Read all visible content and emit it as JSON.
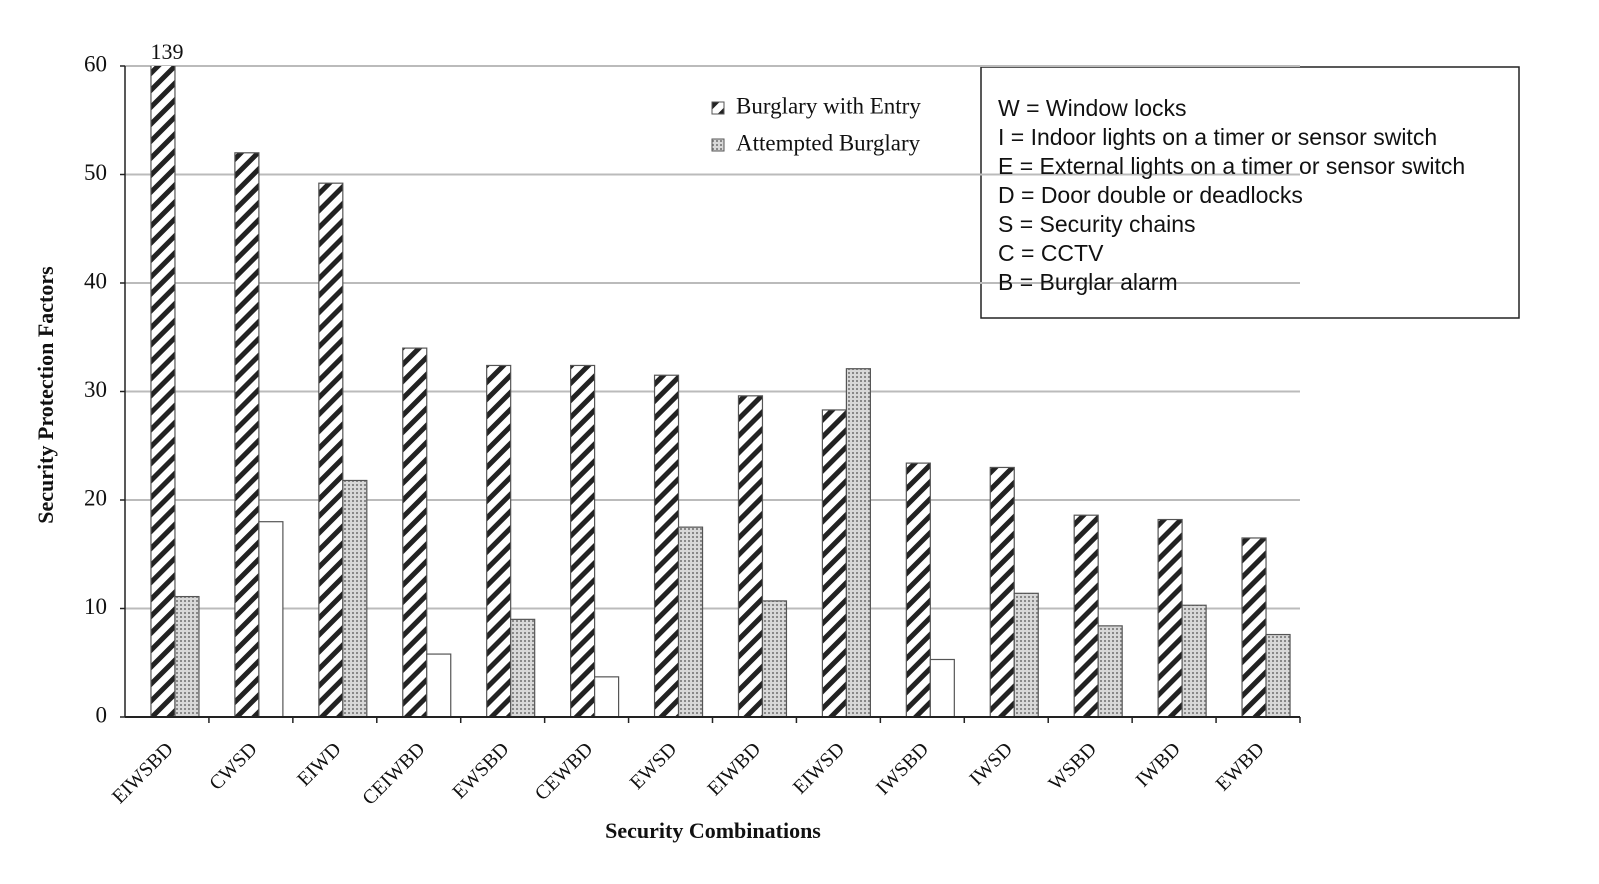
{
  "chart_data": {
    "type": "bar",
    "xlabel": "Security Combinations",
    "ylabel": "Security Protection Factors",
    "categories": [
      "EIWSBD",
      "CWSD",
      "EIWD",
      "CEIWBD",
      "EWSBD",
      "CEWBD",
      "EWSD",
      "EIWBD",
      "EIWSD",
      "IWSBD",
      "IWSD",
      "WSBD",
      "IWBD",
      "EWBD"
    ],
    "series": [
      {
        "name": "Burglary with Entry",
        "color": "#222222",
        "pattern": "hatch",
        "values": [
          139,
          52,
          49.2,
          34,
          32.4,
          32.4,
          31.5,
          29.6,
          28.3,
          23.4,
          23,
          18.6,
          18.2,
          16.5
        ],
        "value_labels": [
          "139",
          null,
          null,
          null,
          null,
          null,
          null,
          null,
          null,
          null,
          null,
          null,
          null,
          null
        ]
      },
      {
        "name": "Attempted Burglary",
        "color": "#999999",
        "pattern": "dots",
        "point_patterns": [
          "dots",
          "plain",
          "dots",
          "plain",
          "dots",
          "plain",
          "dots",
          "dots",
          "dots",
          "plain",
          "dots",
          "dots",
          "dots",
          "dots"
        ],
        "values": [
          11.1,
          18,
          21.8,
          5.8,
          9,
          3.7,
          17.5,
          10.7,
          32.1,
          5.3,
          11.4,
          8.4,
          10.3,
          7.6
        ]
      }
    ],
    "ylim": [
      0,
      60
    ],
    "yticks": [
      0,
      10,
      20,
      30,
      40,
      50,
      60
    ],
    "grid": true,
    "legend": "top-center",
    "key": [
      "W = Window locks",
      "I = Indoor lights on a timer or sensor switch",
      "E = External lights on a timer or sensor switch",
      "D = Door double or deadlocks",
      "S = Security chains",
      "C = CCTV",
      "B = Burglar alarm"
    ]
  }
}
